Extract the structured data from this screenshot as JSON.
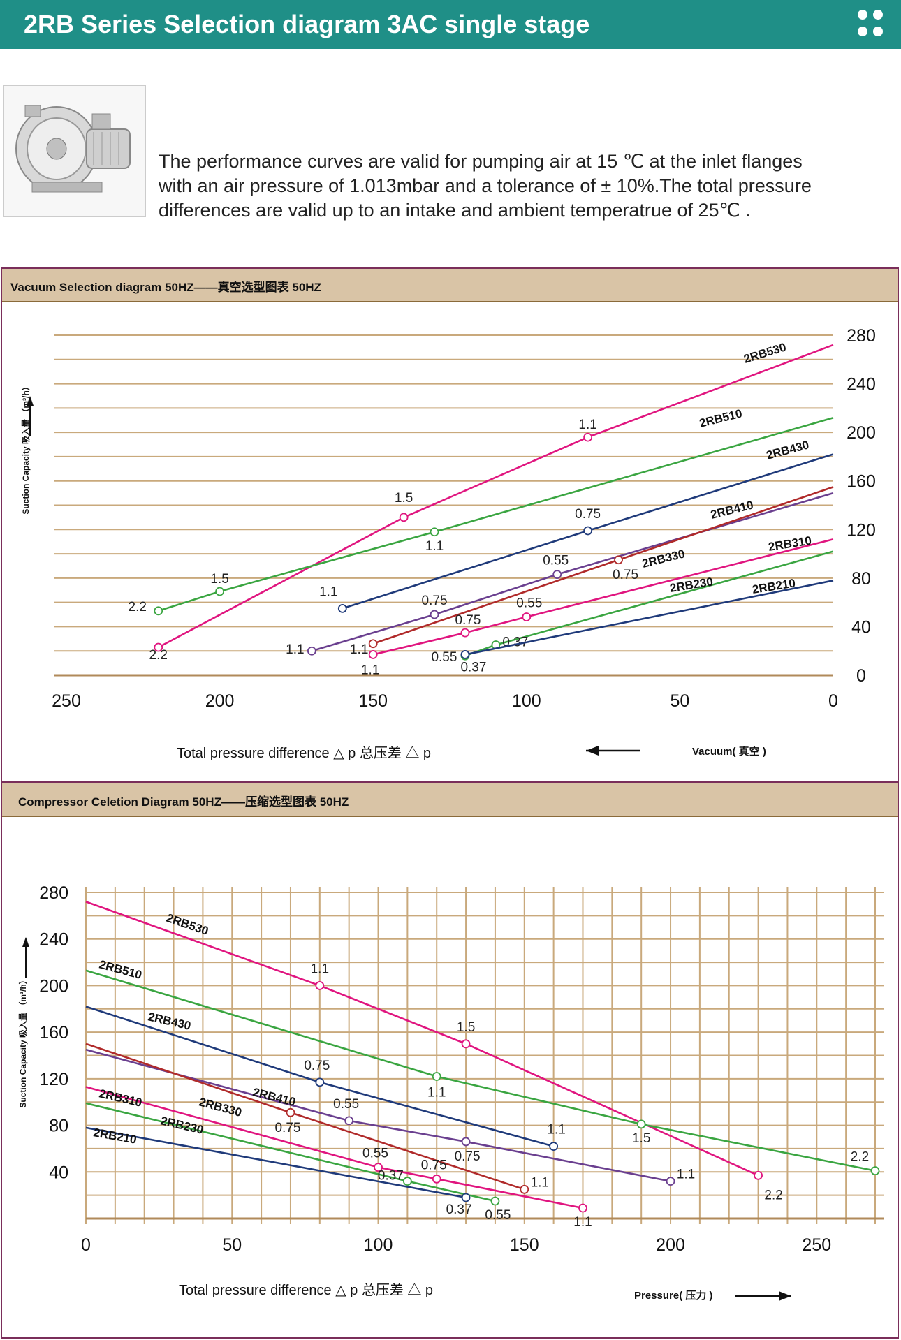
{
  "header": {
    "title": "2RB Series Selection diagram 3AC single stage"
  },
  "intro": {
    "lines": [
      "The performance curves are valid for pumping air at 15  ℃ at the inlet flanges",
      "with an air pressure of 1.013mbar and a tolerance of ± 10%.The total pressure",
      "differences are valid up to an intake and ambient temperatrue of 25℃ ."
    ]
  },
  "colors": {
    "banner": "#1f8f87",
    "panel_header": "#d9c4a6",
    "grid": "#c9a97c",
    "panel_border": "#7a2e5a"
  },
  "vacuum": {
    "title": "Vacuum Selection diagram 50HZ——真空选型图表 50HZ",
    "xlabel": "Total pressure difference △ p 总压差  △ p",
    "ylabel": "Suction Capacity 吸入量 （m³/h）",
    "direction_label": "Vacuum( 真空 )"
  },
  "compressor": {
    "title": "Compressor Celetion Diagram 50HZ——压缩选型图表 50HZ",
    "xlabel": "Total pressure difference △ p 总压差  △ p",
    "ylabel": "Suction Capacity 吸入量 （m³/h）",
    "direction_label": "Pressure( 压力 )"
  },
  "chart_data": [
    {
      "type": "line",
      "title": "Vacuum Selection diagram 50HZ——真空选型图表 50HZ",
      "xlabel": "Total pressure difference △ p 总压差  △ p",
      "ylabel": "Suction Capacity 吸入量 （m³/h）",
      "x_reversed": true,
      "xlim": [
        0,
        250
      ],
      "ylim": [
        0,
        280
      ],
      "xticks": [
        0,
        50,
        100,
        150,
        200,
        250
      ],
      "yticks": [
        0,
        40,
        80,
        120,
        160,
        200,
        240,
        280
      ],
      "grid": true,
      "series": [
        {
          "name": "2RB530",
          "color": "#e0157f",
          "points": [
            [
              0,
              272
            ],
            [
              80,
              196
            ],
            [
              140,
              130
            ],
            [
              220,
              23
            ]
          ],
          "markers": [
            {
              "x": 80,
              "y": 196,
              "label": "1.1"
            },
            {
              "x": 140,
              "y": 130,
              "label": "1.5"
            },
            {
              "x": 220,
              "y": 23,
              "label": "2.2"
            }
          ]
        },
        {
          "name": "2RB510",
          "color": "#3aa541",
          "points": [
            [
              0,
              212
            ],
            [
              130,
              118
            ],
            [
              200,
              69
            ],
            [
              220,
              53
            ]
          ],
          "markers": [
            {
              "x": 130,
              "y": 118,
              "label": "1.1"
            },
            {
              "x": 200,
              "y": 69,
              "label": "1.5"
            },
            {
              "x": 220,
              "y": 53,
              "label": "2.2"
            }
          ]
        },
        {
          "name": "2RB430",
          "color": "#1f3a7a",
          "points": [
            [
              0,
              182
            ],
            [
              80,
              119
            ],
            [
              160,
              55
            ]
          ],
          "markers": [
            {
              "x": 80,
              "y": 119,
              "label": "0.75"
            },
            {
              "x": 160,
              "y": 55,
              "label": "1.1"
            }
          ]
        },
        {
          "name": "2RB410",
          "color": "#6a3f8f",
          "points": [
            [
              0,
              150
            ],
            [
              90,
              83
            ],
            [
              130,
              50
            ],
            [
              170,
              20
            ]
          ],
          "markers": [
            {
              "x": 90,
              "y": 83,
              "label": "0.55"
            },
            {
              "x": 130,
              "y": 50,
              "label": "0.75"
            },
            {
              "x": 170,
              "y": 20,
              "label": "1.1"
            }
          ]
        },
        {
          "name": "2RB330",
          "color": "#b02a2a",
          "points": [
            [
              0,
              155
            ],
            [
              70,
              95
            ],
            [
              150,
              26
            ]
          ],
          "markers": [
            {
              "x": 70,
              "y": 95,
              "label": "0.75"
            },
            {
              "x": 150,
              "y": 26,
              "label": "1.1"
            }
          ]
        },
        {
          "name": "2RB310",
          "color": "#e0157f",
          "points": [
            [
              0,
              112
            ],
            [
              100,
              48
            ],
            [
              120,
              35
            ],
            [
              150,
              17
            ]
          ],
          "markers": [
            {
              "x": 100,
              "y": 48,
              "label": "0.55"
            },
            {
              "x": 120,
              "y": 35,
              "label": "0.75"
            },
            {
              "x": 150,
              "y": 17,
              "label": "1.1"
            }
          ]
        },
        {
          "name": "2RB230",
          "color": "#3aa541",
          "points": [
            [
              0,
              102
            ],
            [
              110,
              25
            ],
            [
              120,
              16
            ]
          ],
          "markers": [
            {
              "x": 110,
              "y": 25,
              "label": "0.37"
            },
            {
              "x": 120,
              "y": 16,
              "label": "0.55"
            }
          ]
        },
        {
          "name": "2RB210",
          "color": "#1f3a7a",
          "points": [
            [
              0,
              78
            ],
            [
              120,
              17
            ]
          ],
          "markers": [
            {
              "x": 120,
              "y": 17,
              "label": "0.37"
            }
          ]
        }
      ]
    },
    {
      "type": "line",
      "title": "Compressor Celetion Diagram 50HZ——压缩选型图表 50HZ",
      "xlabel": "Total pressure difference △ p 总压差  △ p",
      "ylabel": "Suction Capacity 吸入量 （m³/h）",
      "xlim": [
        0,
        270
      ],
      "ylim": [
        0,
        280
      ],
      "xticks": [
        0,
        50,
        100,
        150,
        200,
        250
      ],
      "yticks": [
        40,
        80,
        120,
        160,
        200,
        240,
        280
      ],
      "grid": true,
      "series": [
        {
          "name": "2RB530",
          "color": "#e0157f",
          "points": [
            [
              0,
              272
            ],
            [
              80,
              200
            ],
            [
              130,
              150
            ],
            [
              230,
              37
            ]
          ],
          "markers": [
            {
              "x": 80,
              "y": 200,
              "label": "1.1"
            },
            {
              "x": 130,
              "y": 150,
              "label": "1.5"
            },
            {
              "x": 230,
              "y": 37,
              "label": "2.2"
            }
          ]
        },
        {
          "name": "2RB510",
          "color": "#3aa541",
          "points": [
            [
              0,
              213
            ],
            [
              120,
              122
            ],
            [
              190,
              81
            ],
            [
              270,
              41
            ]
          ],
          "markers": [
            {
              "x": 120,
              "y": 122,
              "label": "1.1"
            },
            {
              "x": 190,
              "y": 81,
              "label": "1.5"
            },
            {
              "x": 270,
              "y": 41,
              "label": "2.2"
            }
          ]
        },
        {
          "name": "2RB430",
          "color": "#1f3a7a",
          "points": [
            [
              0,
              182
            ],
            [
              80,
              117
            ],
            [
              160,
              62
            ]
          ],
          "markers": [
            {
              "x": 80,
              "y": 117,
              "label": "0.75"
            },
            {
              "x": 160,
              "y": 62,
              "label": "1.1"
            }
          ]
        },
        {
          "name": "2RB410",
          "color": "#6a3f8f",
          "points": [
            [
              0,
              145
            ],
            [
              90,
              84
            ],
            [
              130,
              66
            ],
            [
              200,
              32
            ]
          ],
          "markers": [
            {
              "x": 90,
              "y": 84,
              "label": "0.55"
            },
            {
              "x": 130,
              "y": 66,
              "label": "0.75"
            },
            {
              "x": 200,
              "y": 32,
              "label": "1.1"
            }
          ]
        },
        {
          "name": "2RB330",
          "color": "#b02a2a",
          "points": [
            [
              0,
              150
            ],
            [
              70,
              91
            ],
            [
              150,
              25
            ]
          ],
          "markers": [
            {
              "x": 70,
              "y": 91,
              "label": "0.75"
            },
            {
              "x": 150,
              "y": 25,
              "label": "1.1"
            }
          ]
        },
        {
          "name": "2RB310",
          "color": "#e0157f",
          "points": [
            [
              0,
              113
            ],
            [
              100,
              44
            ],
            [
              120,
              34
            ],
            [
              170,
              9
            ]
          ],
          "markers": [
            {
              "x": 100,
              "y": 44,
              "label": "0.55"
            },
            {
              "x": 120,
              "y": 34,
              "label": "0.75"
            },
            {
              "x": 170,
              "y": 9,
              "label": "1.1"
            }
          ]
        },
        {
          "name": "2RB230",
          "color": "#3aa541",
          "points": [
            [
              0,
              99
            ],
            [
              110,
              32
            ],
            [
              140,
              15
            ]
          ],
          "markers": [
            {
              "x": 110,
              "y": 32,
              "label": "0.37"
            },
            {
              "x": 140,
              "y": 15,
              "label": "0.55"
            }
          ]
        },
        {
          "name": "2RB210",
          "color": "#1f3a7a",
          "points": [
            [
              0,
              78
            ],
            [
              130,
              18
            ]
          ],
          "markers": [
            {
              "x": 130,
              "y": 18,
              "label": "0.37"
            }
          ]
        }
      ]
    }
  ]
}
